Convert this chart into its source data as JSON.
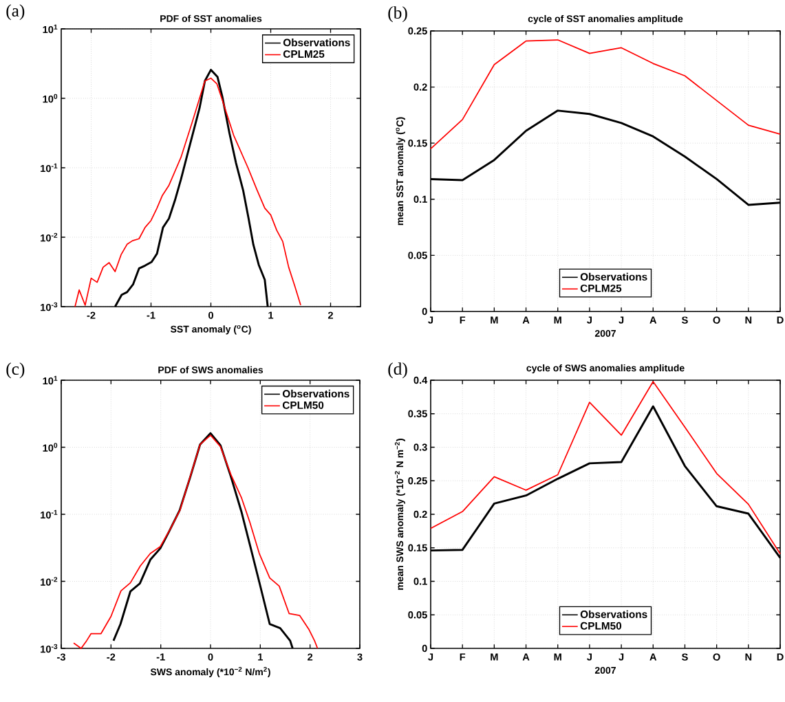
{
  "chart_data": [
    {
      "type": "line",
      "title": "PDF of SST anomalies",
      "xlabel": "SST anomaly ($^{o}$C)",
      "annotations": [
        "(a)"
      ],
      "log": "y",
      "grid": true,
      "legend": "top right",
      "xlim": [
        -2.5,
        2.5
      ],
      "xticks": [
        -2,
        -1,
        0,
        1,
        2
      ],
      "ylim": [
        0.001,
        10
      ],
      "yticks": [
        {
          "value": 0.001,
          "label": "10$^{-3}$"
        },
        {
          "value": 0.01,
          "label": "10$^{-2}$"
        },
        {
          "value": 0.1,
          "label": "10$^{-1}$"
        },
        {
          "value": 1,
          "label": "10$^{0}$"
        },
        {
          "value": 10,
          "label": "10$^{1}$"
        }
      ],
      "series": [
        {
          "name": "Observations",
          "color": "#000000",
          "x": [
            -1.6,
            -1.49,
            -1.4,
            -1.3,
            -1.2,
            -1.1,
            -0.99,
            -0.9,
            -0.8,
            -0.7,
            -0.6,
            -0.5,
            -0.39,
            -0.19,
            -0.1,
            0,
            0.11,
            0.19,
            0.31,
            0.42,
            0.54,
            0.63,
            0.71,
            0.8,
            0.9,
            0.95
          ],
          "values": [
            0.001,
            0.00148,
            0.00162,
            0.00209,
            0.00355,
            0.0039,
            0.0044,
            0.0058,
            0.0138,
            0.0186,
            0.034,
            0.068,
            0.158,
            0.72,
            1.78,
            2.57,
            2.04,
            1.07,
            0.316,
            0.117,
            0.047,
            0.0186,
            0.0078,
            0.004,
            0.00245,
            0.001
          ]
        },
        {
          "name": "CPLM25",
          "color": "#ff0000",
          "x": [
            -2.27,
            -2.2,
            -2.1,
            -2.0,
            -1.9,
            -1.8,
            -1.7,
            -1.6,
            -1.5,
            -1.4,
            -1.31,
            -1.2,
            -1.1,
            -1.0,
            -0.9,
            -0.81,
            -0.7,
            -0.5,
            -0.31,
            -0.1,
            0,
            0.1,
            0.19,
            0.38,
            0.62,
            0.77,
            0.9,
            1.0,
            1.1,
            1.2,
            1.3,
            1.4,
            1.5
          ],
          "values": [
            0.001,
            0.00174,
            0.00105,
            0.00257,
            0.00224,
            0.0037,
            0.0043,
            0.0032,
            0.0056,
            0.0079,
            0.0089,
            0.0095,
            0.0138,
            0.0174,
            0.0263,
            0.04,
            0.056,
            0.141,
            0.457,
            1.78,
            1.95,
            1.62,
            0.95,
            0.295,
            0.1,
            0.048,
            0.0263,
            0.0209,
            0.0126,
            0.0087,
            0.0037,
            0.002,
            0.00105
          ]
        }
      ]
    },
    {
      "type": "line",
      "title": "cycle of SST anomalies amplitude",
      "xlabel": "2007",
      "ylabel": "mean SST anomaly ($^{o}$C)",
      "annotations": [
        "(b)"
      ],
      "grid": true,
      "legend": "bottom",
      "categories": [
        "J",
        "F",
        "M",
        "A",
        "M",
        "J",
        "J",
        "A",
        "S",
        "O",
        "N",
        "D"
      ],
      "ylim": [
        0,
        0.25
      ],
      "yticks": [
        0,
        0.05,
        0.1,
        0.15,
        0.2,
        0.25
      ],
      "series": [
        {
          "name": "Observations",
          "color": "#000000",
          "values": [
            0.118,
            0.117,
            0.135,
            0.161,
            0.179,
            0.176,
            0.168,
            0.156,
            0.138,
            0.118,
            0.095,
            0.097
          ]
        },
        {
          "name": "CPLM25",
          "color": "#ff0000",
          "values": [
            0.145,
            0.171,
            0.22,
            0.241,
            0.242,
            0.23,
            0.235,
            0.221,
            0.21,
            0.188,
            0.166,
            0.158
          ]
        }
      ]
    },
    {
      "type": "line",
      "title": "PDF of SWS anomalies",
      "xlabel": "SWS anomaly (*10$^{−2}$ N/m$^{2}$)",
      "annotations": [
        "(c)"
      ],
      "log": "y",
      "grid": true,
      "legend": "top right",
      "xlim": [
        -3,
        3
      ],
      "xticks": [
        -3,
        -2,
        -1,
        0,
        1,
        2,
        3
      ],
      "ylim": [
        0.001,
        10
      ],
      "yticks": [
        {
          "value": 0.001,
          "label": "10$^{-3}$"
        },
        {
          "value": 0.01,
          "label": "10$^{-2}$"
        },
        {
          "value": 0.1,
          "label": "10$^{-1}$"
        },
        {
          "value": 1,
          "label": "10$^{0}$"
        },
        {
          "value": 10,
          "label": "10$^{1}$"
        }
      ],
      "series": [
        {
          "name": "Observations",
          "color": "#000000",
          "x": [
            -1.95,
            -1.81,
            -1.61,
            -1.42,
            -1.21,
            -1.01,
            -0.83,
            -0.62,
            -0.41,
            -0.21,
            0,
            0.2,
            0.41,
            0.62,
            0.8,
            0.99,
            1.19,
            1.4,
            1.6,
            1.65
          ],
          "values": [
            0.0013,
            0.0023,
            0.0071,
            0.0093,
            0.021,
            0.031,
            0.056,
            0.115,
            0.355,
            1.1,
            1.62,
            1.07,
            0.363,
            0.11,
            0.033,
            0.0091,
            0.0023,
            0.002,
            0.0013,
            0.001
          ]
        },
        {
          "name": "CPLM50",
          "color": "#ff0000",
          "x": [
            -2.75,
            -2.6,
            -2.49,
            -2.4,
            -2.2,
            -2.0,
            -1.8,
            -1.61,
            -1.41,
            -1.21,
            -1.01,
            -0.81,
            -0.61,
            -0.41,
            -0.21,
            0,
            0.2,
            0.41,
            0.62,
            0.79,
            0.98,
            1.19,
            1.38,
            1.58,
            1.79,
            1.98,
            2.09,
            2.15
          ],
          "values": [
            0.0012,
            0.001,
            0.0013,
            0.00166,
            0.00166,
            0.003,
            0.0072,
            0.0095,
            0.017,
            0.026,
            0.033,
            0.06,
            0.117,
            0.363,
            1.1,
            1.51,
            1.02,
            0.39,
            0.178,
            0.076,
            0.026,
            0.0112,
            0.0085,
            0.0033,
            0.0031,
            0.0019,
            0.0013,
            0.001
          ]
        }
      ]
    },
    {
      "type": "line",
      "title": "cycle of SWS anomalies amplitude",
      "xlabel": "2007",
      "ylabel": "mean SWS anomaly (*10$^{−2}$ N m$^{−2}$)",
      "annotations": [
        "(d)"
      ],
      "grid": true,
      "legend": "bottom",
      "categories": [
        "J",
        "F",
        "M",
        "A",
        "M",
        "J",
        "J",
        "A",
        "S",
        "O",
        "N",
        "D"
      ],
      "ylim": [
        0,
        0.4
      ],
      "yticks": [
        0,
        0.05,
        0.1,
        0.15,
        0.2,
        0.25,
        0.3,
        0.35,
        0.4
      ],
      "series": [
        {
          "name": "Observations",
          "color": "#000000",
          "values": [
            0.146,
            0.147,
            0.216,
            0.228,
            0.253,
            0.276,
            0.278,
            0.361,
            0.272,
            0.212,
            0.201,
            0.135
          ]
        },
        {
          "name": "CPLM50",
          "color": "#ff0000",
          "values": [
            0.179,
            0.204,
            0.256,
            0.236,
            0.259,
            0.367,
            0.318,
            0.398,
            0.33,
            0.261,
            0.215,
            0.141
          ]
        }
      ]
    }
  ]
}
